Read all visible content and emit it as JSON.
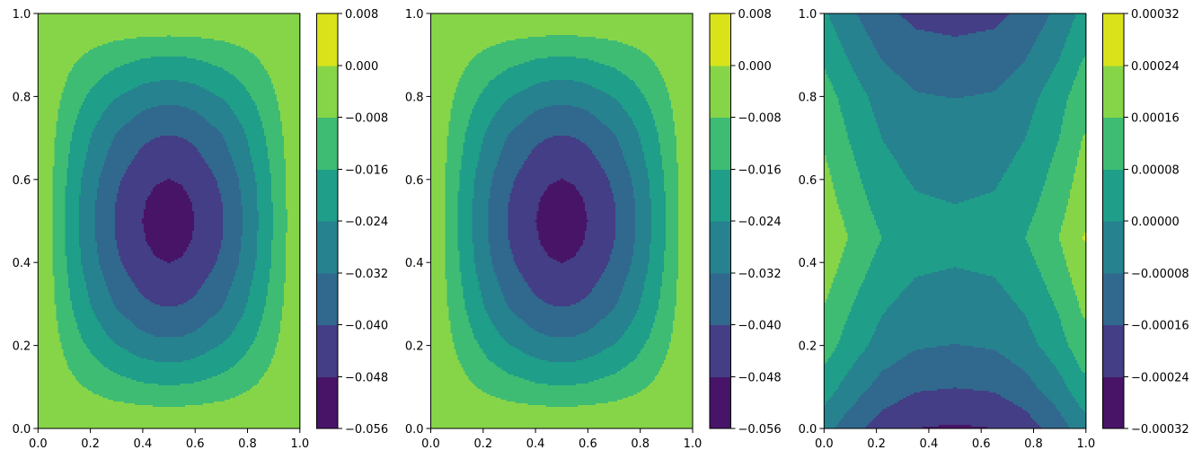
{
  "chart_data": [
    {
      "type": "contour",
      "xlim": [
        0,
        1
      ],
      "ylim": [
        0,
        1
      ],
      "xticks": [
        "0.0",
        "0.2",
        "0.4",
        "0.6",
        "0.8",
        "1.0"
      ],
      "yticks": [
        "0.0",
        "0.2",
        "0.4",
        "0.6",
        "0.8",
        "1.0"
      ],
      "levels": [
        -0.056,
        -0.048,
        -0.04,
        -0.032,
        -0.024,
        -0.016,
        -0.008,
        0.0,
        0.008
      ],
      "colorbar_ticks": [
        "−0.056",
        "−0.048",
        "−0.040",
        "−0.032",
        "−0.024",
        "−0.016",
        "−0.008",
        "0.000",
        "0.008"
      ],
      "colors": [
        "#481467",
        "#433e85",
        "#31688e",
        "#26828e",
        "#1f9e89",
        "#3ebc74",
        "#86d549",
        "#dae319"
      ],
      "profile_along_x_at_y_0_5": [
        [
          0,
          0
        ],
        [
          0.053,
          -0.008
        ],
        [
          0.102,
          -0.016
        ],
        [
          0.157,
          -0.024
        ],
        [
          0.219,
          -0.032
        ],
        [
          0.292,
          -0.04
        ],
        [
          0.399,
          -0.048
        ],
        [
          0.45,
          -0.0499
        ],
        [
          0.5,
          -0.0505
        ],
        [
          0.55,
          -0.0499
        ],
        [
          0.599,
          -0.048
        ],
        [
          0.708,
          -0.04
        ],
        [
          0.78,
          -0.032
        ],
        [
          0.84,
          -0.024
        ],
        [
          0.895,
          -0.016
        ],
        [
          0.949,
          -0.008
        ],
        [
          1,
          0
        ]
      ],
      "profile_along_y_at_x_0_5": [
        [
          0,
          0
        ],
        [
          0.053,
          -0.008
        ],
        [
          0.105,
          -0.016
        ],
        [
          0.16,
          -0.024
        ],
        [
          0.219,
          -0.032
        ],
        [
          0.292,
          -0.04
        ],
        [
          0.398,
          -0.048
        ],
        [
          0.45,
          -0.0499
        ],
        [
          0.5,
          -0.0505
        ],
        [
          0.55,
          -0.0499
        ],
        [
          0.602,
          -0.048
        ],
        [
          0.708,
          -0.04
        ],
        [
          0.78,
          -0.032
        ],
        [
          0.839,
          -0.024
        ],
        [
          0.897,
          -0.016
        ],
        [
          0.946,
          -0.008
        ],
        [
          1,
          0
        ]
      ]
    },
    {
      "type": "contour",
      "xlim": [
        0,
        1
      ],
      "ylim": [
        0,
        1
      ],
      "xticks": [
        "0.0",
        "0.2",
        "0.4",
        "0.6",
        "0.8",
        "1.0"
      ],
      "yticks": [
        "0.0",
        "0.2",
        "0.4",
        "0.6",
        "0.8",
        "1.0"
      ],
      "levels": [
        -0.056,
        -0.048,
        -0.04,
        -0.032,
        -0.024,
        -0.016,
        -0.008,
        0.0,
        0.008
      ],
      "colorbar_ticks": [
        "−0.056",
        "−0.048",
        "−0.040",
        "−0.032",
        "−0.024",
        "−0.016",
        "−0.008",
        "0.000",
        "0.008"
      ],
      "colors": [
        "#481467",
        "#433e85",
        "#31688e",
        "#26828e",
        "#1f9e89",
        "#3ebc74",
        "#86d549",
        "#dae319"
      ],
      "profile_along_x_at_y_0_5": [
        [
          0,
          0
        ],
        [
          0.052,
          -0.008
        ],
        [
          0.103,
          -0.016
        ],
        [
          0.158,
          -0.024
        ],
        [
          0.218,
          -0.032
        ],
        [
          0.292,
          -0.04
        ],
        [
          0.4,
          -0.048
        ],
        [
          0.45,
          -0.0499
        ],
        [
          0.5,
          -0.0505
        ],
        [
          0.55,
          -0.0499
        ],
        [
          0.6,
          -0.048
        ],
        [
          0.708,
          -0.04
        ],
        [
          0.782,
          -0.032
        ],
        [
          0.842,
          -0.024
        ],
        [
          0.897,
          -0.016
        ],
        [
          0.948,
          -0.008
        ],
        [
          1,
          0
        ]
      ],
      "profile_along_y_at_x_0_5": [
        [
          0,
          0
        ],
        [
          0.053,
          -0.008
        ],
        [
          0.104,
          -0.016
        ],
        [
          0.16,
          -0.024
        ],
        [
          0.219,
          -0.032
        ],
        [
          0.292,
          -0.04
        ],
        [
          0.398,
          -0.048
        ],
        [
          0.45,
          -0.0499
        ],
        [
          0.5,
          -0.0505
        ],
        [
          0.55,
          -0.0499
        ],
        [
          0.602,
          -0.048
        ],
        [
          0.708,
          -0.04
        ],
        [
          0.78,
          -0.032
        ],
        [
          0.84,
          -0.024
        ],
        [
          0.896,
          -0.016
        ],
        [
          0.947,
          -0.008
        ],
        [
          1,
          0
        ]
      ]
    },
    {
      "type": "contour",
      "xlim": [
        0,
        1
      ],
      "ylim": [
        0,
        1
      ],
      "xticks": [
        "0.0",
        "0.2",
        "0.4",
        "0.6",
        "0.8",
        "1.0"
      ],
      "yticks": [
        "0.0",
        "0.2",
        "0.4",
        "0.6",
        "0.8",
        "1.0"
      ],
      "levels": [
        -0.00032,
        -0.00024,
        -0.00016,
        -8e-05,
        0.0,
        8e-05,
        0.00016,
        0.00024,
        0.00032
      ],
      "colorbar_ticks": [
        "−0.00032",
        "−0.00024",
        "−0.00016",
        "−0.00008",
        "0.00000",
        "0.00008",
        "0.00016",
        "0.00024",
        "0.00032"
      ],
      "colors": [
        "#481467",
        "#433e85",
        "#31688e",
        "#26828e",
        "#1f9e89",
        "#3ebc74",
        "#86d549",
        "#dae319"
      ],
      "profile_along_x_at_y_0_5": [
        [
          0,
          0.00023
        ],
        [
          0.092,
          0.00016
        ],
        [
          0.221,
          8e-05
        ],
        [
          0.35,
          4e-05
        ],
        [
          0.5,
          3e-05
        ],
        [
          0.65,
          4e-05
        ],
        [
          0.768,
          8e-05
        ],
        [
          0.896,
          0.00016
        ],
        [
          0.985,
          0.00024
        ],
        [
          1,
          0.000245
        ]
      ],
      "profile_along_y_at_x_0_5": [
        [
          0,
          -0.00025
        ],
        [
          0.098,
          -0.00016
        ],
        [
          0.203,
          -8e-05
        ],
        [
          0.388,
          0
        ],
        [
          0.46,
          3e-05
        ],
        [
          0.54,
          0
        ],
        [
          0.794,
          -8e-05
        ],
        [
          0.944,
          -0.00016
        ],
        [
          1,
          -0.00019
        ]
      ]
    }
  ]
}
